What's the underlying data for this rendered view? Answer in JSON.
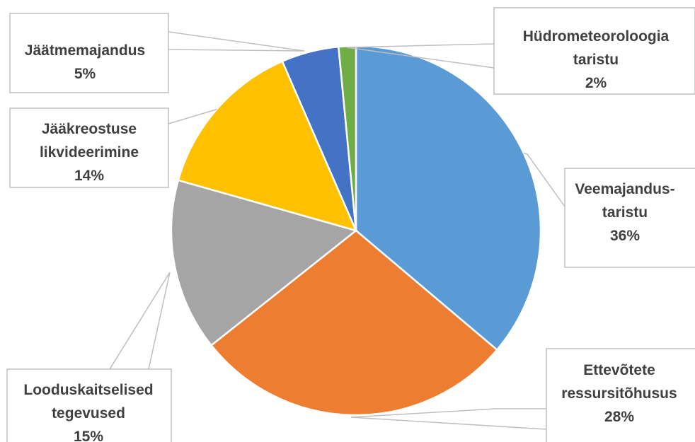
{
  "chart_data": {
    "type": "pie",
    "slices": [
      {
        "name": "Veemajandus-taristu",
        "value": 36,
        "label_lines": [
          "Veemajandus-",
          "taristu"
        ],
        "value_label": "36%",
        "color": "#5B9BD5"
      },
      {
        "name": "Ettevõtete ressursitõhusus",
        "value": 28,
        "label_lines": [
          "Ettevõtete",
          "ressursitõhusus"
        ],
        "value_label": "28%",
        "color": "#ED7D31"
      },
      {
        "name": "Looduskaitselised tegevused",
        "value": 15,
        "label_lines": [
          "Looduskaitselised",
          "tegevused"
        ],
        "value_label": "15%",
        "color": "#A5A5A5"
      },
      {
        "name": "Jääkreostuse likvideerimine",
        "value": 14,
        "label_lines": [
          "Jääkreostuse",
          "likvideerimine"
        ],
        "value_label": "14%",
        "color": "#FFC000"
      },
      {
        "name": "Jäätmemajandus",
        "value": 5,
        "label_lines": [
          "Jäätmemajandus"
        ],
        "value_label": "5%",
        "color": "#4472C4"
      },
      {
        "name": "Hüdrometeoroloogia taristu",
        "value": 1.5,
        "label_lines": [
          "Hüdrometeoroloogia",
          "taristu"
        ],
        "value_label": "2%",
        "color": "#70AD47"
      }
    ]
  }
}
